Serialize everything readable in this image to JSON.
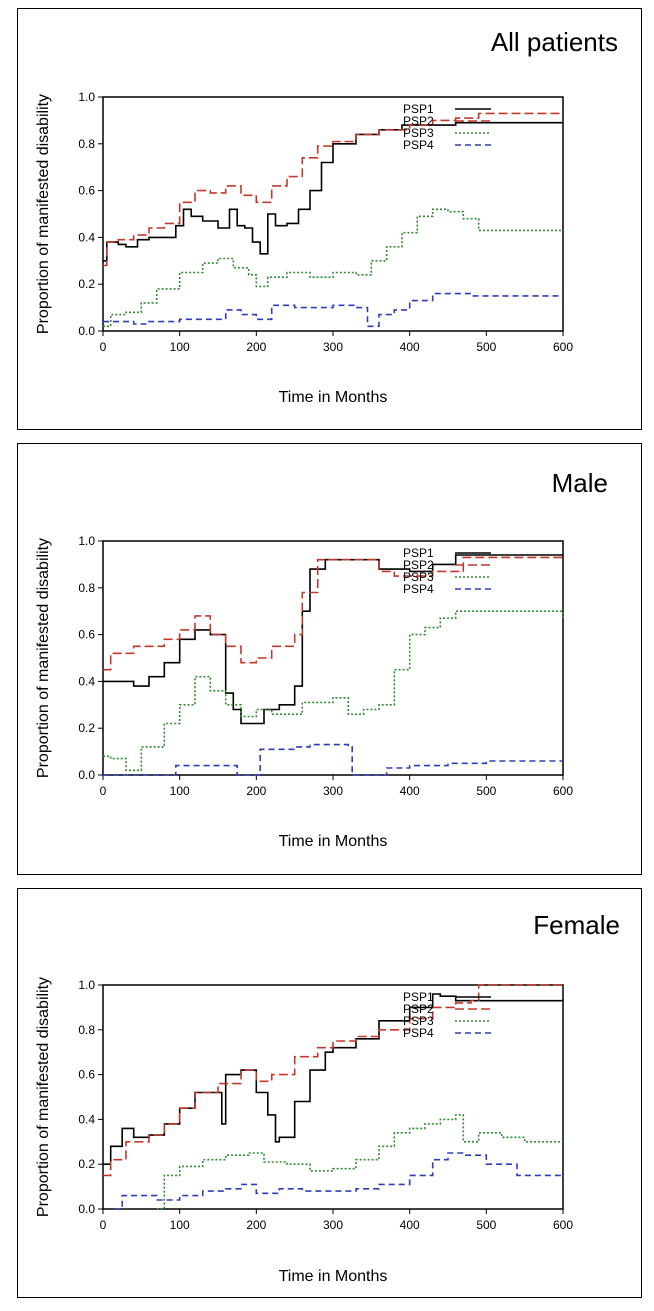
{
  "chart_data": [
    {
      "type": "line",
      "title": "All patients",
      "xlabel": "Time in Months",
      "ylabel": "Proportion of manifested disability",
      "xlim": [
        0,
        600
      ],
      "ylim": [
        0,
        1.0
      ],
      "x_ticks": [
        "0",
        "100",
        "200",
        "300",
        "400",
        "500",
        "600"
      ],
      "y_ticks": [
        "0.0",
        "0.2",
        "0.4",
        "0.6",
        "0.8",
        "1.0"
      ],
      "legend_position": "top-right",
      "series": [
        {
          "name": "PSP1",
          "color": "#000000",
          "dash": "solid",
          "x": [
            0,
            5,
            20,
            30,
            45,
            60,
            80,
            95,
            105,
            115,
            130,
            150,
            165,
            175,
            185,
            195,
            205,
            215,
            225,
            240,
            255,
            270,
            285,
            300,
            330,
            360,
            390,
            420,
            460,
            500,
            600
          ],
          "y": [
            0.3,
            0.38,
            0.37,
            0.36,
            0.39,
            0.4,
            0.4,
            0.45,
            0.52,
            0.49,
            0.47,
            0.44,
            0.52,
            0.45,
            0.44,
            0.38,
            0.33,
            0.5,
            0.45,
            0.46,
            0.52,
            0.6,
            0.72,
            0.8,
            0.84,
            0.86,
            0.88,
            0.88,
            0.89,
            0.89,
            0.89
          ]
        },
        {
          "name": "PSP2",
          "color": "#c0392b",
          "dash": "long-dash",
          "x": [
            0,
            5,
            20,
            40,
            60,
            80,
            100,
            120,
            140,
            160,
            180,
            200,
            220,
            240,
            260,
            280,
            300,
            330,
            360,
            400,
            430,
            460,
            490,
            600
          ],
          "y": [
            0.28,
            0.38,
            0.39,
            0.41,
            0.44,
            0.46,
            0.55,
            0.6,
            0.59,
            0.62,
            0.58,
            0.55,
            0.62,
            0.66,
            0.74,
            0.79,
            0.81,
            0.84,
            0.86,
            0.88,
            0.9,
            0.91,
            0.93,
            0.93
          ]
        },
        {
          "name": "PSP3",
          "color": "#2e8b2e",
          "dash": "dotted",
          "x": [
            0,
            10,
            30,
            50,
            70,
            100,
            130,
            150,
            170,
            190,
            200,
            215,
            240,
            270,
            300,
            330,
            350,
            370,
            390,
            410,
            430,
            450,
            470,
            490,
            600
          ],
          "y": [
            0.02,
            0.07,
            0.08,
            0.12,
            0.18,
            0.25,
            0.29,
            0.31,
            0.27,
            0.24,
            0.19,
            0.23,
            0.25,
            0.23,
            0.25,
            0.24,
            0.3,
            0.36,
            0.42,
            0.49,
            0.52,
            0.51,
            0.48,
            0.43,
            0.43
          ]
        },
        {
          "name": "PSP4",
          "color": "#2d3eb8",
          "dash": "dashed",
          "x": [
            0,
            20,
            40,
            60,
            100,
            130,
            160,
            180,
            200,
            220,
            250,
            280,
            300,
            330,
            345,
            360,
            380,
            400,
            430,
            480,
            600
          ],
          "y": [
            0.04,
            0.04,
            0.03,
            0.04,
            0.05,
            0.05,
            0.09,
            0.07,
            0.05,
            0.11,
            0.1,
            0.1,
            0.11,
            0.1,
            0.02,
            0.07,
            0.09,
            0.13,
            0.16,
            0.15,
            0.15
          ]
        }
      ]
    },
    {
      "type": "line",
      "title": "Male",
      "xlabel": "Time in Months",
      "ylabel": "Proportion of manifested disability",
      "xlim": [
        0,
        600
      ],
      "ylim": [
        0,
        1.0
      ],
      "x_ticks": [
        "0",
        "100",
        "200",
        "300",
        "400",
        "500",
        "600"
      ],
      "y_ticks": [
        "0.0",
        "0.2",
        "0.4",
        "0.6",
        "0.8",
        "1.0"
      ],
      "legend_position": "top-right",
      "series": [
        {
          "name": "PSP1",
          "color": "#000000",
          "dash": "solid",
          "x": [
            0,
            20,
            40,
            60,
            80,
            100,
            120,
            140,
            160,
            170,
            180,
            200,
            210,
            230,
            250,
            260,
            270,
            290,
            300,
            340,
            360,
            380,
            400,
            430,
            460,
            600
          ],
          "y": [
            0.4,
            0.4,
            0.38,
            0.42,
            0.48,
            0.58,
            0.62,
            0.6,
            0.35,
            0.28,
            0.22,
            0.22,
            0.28,
            0.3,
            0.38,
            0.7,
            0.88,
            0.92,
            0.92,
            0.92,
            0.88,
            0.88,
            0.87,
            0.9,
            0.94,
            0.94
          ]
        },
        {
          "name": "PSP2",
          "color": "#c0392b",
          "dash": "long-dash",
          "x": [
            0,
            10,
            40,
            80,
            100,
            120,
            140,
            160,
            180,
            200,
            220,
            250,
            260,
            280,
            300,
            340,
            360,
            380,
            400,
            430,
            470,
            600
          ],
          "y": [
            0.45,
            0.52,
            0.55,
            0.58,
            0.62,
            0.68,
            0.6,
            0.55,
            0.48,
            0.5,
            0.55,
            0.6,
            0.78,
            0.92,
            0.92,
            0.92,
            0.87,
            0.85,
            0.85,
            0.87,
            0.93,
            0.93
          ]
        },
        {
          "name": "PSP3",
          "color": "#2e8b2e",
          "dash": "dotted",
          "x": [
            0,
            10,
            30,
            50,
            80,
            100,
            120,
            140,
            160,
            180,
            200,
            220,
            260,
            300,
            320,
            340,
            360,
            380,
            400,
            420,
            440,
            460,
            600
          ],
          "y": [
            0.08,
            0.07,
            0.02,
            0.12,
            0.22,
            0.3,
            0.42,
            0.36,
            0.3,
            0.25,
            0.28,
            0.26,
            0.31,
            0.33,
            0.26,
            0.28,
            0.3,
            0.45,
            0.6,
            0.63,
            0.67,
            0.7,
            0.67
          ]
        },
        {
          "name": "PSP4",
          "color": "#2d3eb8",
          "dash": "dashed",
          "x": [
            0,
            95,
            100,
            170,
            175,
            200,
            205,
            250,
            270,
            300,
            320,
            325,
            365,
            370,
            400,
            450,
            500,
            600
          ],
          "y": [
            0.0,
            0.04,
            0.04,
            0.04,
            0.0,
            0.0,
            0.11,
            0.12,
            0.13,
            0.13,
            0.12,
            0.0,
            0.0,
            0.03,
            0.04,
            0.05,
            0.06,
            0.06
          ]
        }
      ]
    },
    {
      "type": "line",
      "title": "Female",
      "xlabel": "Time in Months",
      "ylabel": "Proportion of manifested disability",
      "xlim": [
        0,
        600
      ],
      "ylim": [
        0,
        1.0
      ],
      "x_ticks": [
        "0",
        "100",
        "200",
        "300",
        "400",
        "500",
        "600"
      ],
      "y_ticks": [
        "0.0",
        "0.2",
        "0.4",
        "0.6",
        "0.8",
        "1.0"
      ],
      "legend_position": "top-right",
      "series": [
        {
          "name": "PSP1",
          "color": "#000000",
          "dash": "solid",
          "x": [
            0,
            10,
            25,
            40,
            60,
            80,
            100,
            120,
            150,
            155,
            160,
            180,
            200,
            215,
            225,
            230,
            250,
            270,
            290,
            300,
            330,
            360,
            400,
            430,
            440,
            460,
            500,
            600
          ],
          "y": [
            0.2,
            0.28,
            0.36,
            0.32,
            0.33,
            0.38,
            0.45,
            0.52,
            0.52,
            0.38,
            0.6,
            0.62,
            0.52,
            0.42,
            0.3,
            0.32,
            0.48,
            0.62,
            0.7,
            0.72,
            0.76,
            0.84,
            0.9,
            0.96,
            0.95,
            0.93,
            0.93,
            0.93
          ]
        },
        {
          "name": "PSP2",
          "color": "#c0392b",
          "dash": "long-dash",
          "x": [
            0,
            10,
            30,
            60,
            80,
            100,
            120,
            150,
            180,
            200,
            220,
            250,
            280,
            300,
            330,
            360,
            400,
            430,
            460,
            480,
            490,
            600
          ],
          "y": [
            0.15,
            0.22,
            0.3,
            0.33,
            0.38,
            0.45,
            0.52,
            0.56,
            0.62,
            0.57,
            0.6,
            0.68,
            0.72,
            0.75,
            0.77,
            0.8,
            0.85,
            0.9,
            0.92,
            0.93,
            1.0,
            1.0
          ]
        },
        {
          "name": "PSP3",
          "color": "#2e8b2e",
          "dash": "dotted",
          "x": [
            70,
            80,
            100,
            130,
            160,
            190,
            210,
            240,
            270,
            300,
            330,
            360,
            380,
            400,
            420,
            440,
            460,
            470,
            490,
            520,
            550,
            600
          ],
          "y": [
            0.0,
            0.15,
            0.19,
            0.22,
            0.24,
            0.25,
            0.21,
            0.2,
            0.17,
            0.18,
            0.22,
            0.28,
            0.34,
            0.36,
            0.38,
            0.4,
            0.42,
            0.3,
            0.34,
            0.32,
            0.3,
            0.3
          ]
        },
        {
          "name": "PSP4",
          "color": "#2d3eb8",
          "dash": "dashed",
          "x": [
            15,
            25,
            50,
            70,
            100,
            130,
            160,
            180,
            200,
            230,
            260,
            300,
            330,
            360,
            400,
            430,
            450,
            470,
            500,
            540,
            600
          ],
          "y": [
            0.0,
            0.06,
            0.06,
            0.04,
            0.06,
            0.08,
            0.09,
            0.11,
            0.07,
            0.09,
            0.08,
            0.08,
            0.09,
            0.11,
            0.15,
            0.22,
            0.25,
            0.24,
            0.2,
            0.15,
            0.15
          ]
        }
      ]
    }
  ]
}
